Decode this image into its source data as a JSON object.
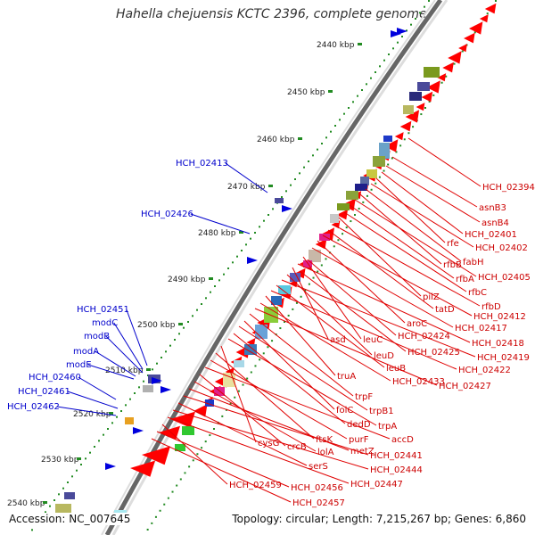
{
  "title": "Hahella chejuensis KCTC 2396, complete genome",
  "footer": {
    "accession": "Accession: NC_007645",
    "topology": "Topology: circular; Length: 7,215,267 bp; Genes: 6,860"
  },
  "ruler": [
    {
      "label": "2440 kbp"
    },
    {
      "label": "2450 kbp"
    },
    {
      "label": "2460 kbp"
    },
    {
      "label": "2470 kbp"
    },
    {
      "label": "2480 kbp"
    },
    {
      "label": "2490 kbp"
    },
    {
      "label": "2500 kbp"
    },
    {
      "label": "2510 kbp"
    },
    {
      "label": "2520 kbp"
    },
    {
      "label": "2530 kbp"
    },
    {
      "label": "2540 kbp"
    }
  ],
  "left_labels": [
    {
      "text": "HCH_02413"
    },
    {
      "text": "HCH_02426"
    },
    {
      "text": "HCH_02451"
    },
    {
      "text": "modC"
    },
    {
      "text": "modB"
    },
    {
      "text": "modA"
    },
    {
      "text": "modE"
    },
    {
      "text": "HCH_02460"
    },
    {
      "text": "HCH_02461"
    },
    {
      "text": "HCH_02462"
    }
  ],
  "right_labels": [
    {
      "text": "HCH_02394"
    },
    {
      "text": "asnB3"
    },
    {
      "text": "asnB4"
    },
    {
      "text": "HCH_02401"
    },
    {
      "text": "rfe"
    },
    {
      "text": "HCH_02402"
    },
    {
      "text": "fabH"
    },
    {
      "text": "rfbB"
    },
    {
      "text": "HCH_02405"
    },
    {
      "text": "rfbA"
    },
    {
      "text": "rfbC"
    },
    {
      "text": "pilZ"
    },
    {
      "text": "rfbD"
    },
    {
      "text": "tatD"
    },
    {
      "text": "HCH_02412"
    },
    {
      "text": "aroC"
    },
    {
      "text": "HCH_02417"
    },
    {
      "text": "asd"
    },
    {
      "text": "leuC"
    },
    {
      "text": "HCH_02424"
    },
    {
      "text": "HCH_02418"
    },
    {
      "text": "leuD"
    },
    {
      "text": "HCH_02425"
    },
    {
      "text": "HCH_02419"
    },
    {
      "text": "leuB"
    },
    {
      "text": "HCH_02422"
    },
    {
      "text": "truA"
    },
    {
      "text": "HCH_02433"
    },
    {
      "text": "HCH_02427"
    },
    {
      "text": "trpF"
    },
    {
      "text": "folC"
    },
    {
      "text": "trpB1"
    },
    {
      "text": "dedD"
    },
    {
      "text": "trpA"
    },
    {
      "text": "cysG"
    },
    {
      "text": "ftsK"
    },
    {
      "text": "purF"
    },
    {
      "text": "accD"
    },
    {
      "text": "crcB"
    },
    {
      "text": "lolA"
    },
    {
      "text": "metZ"
    },
    {
      "text": "HCH_02441"
    },
    {
      "text": "serS"
    },
    {
      "text": "HCH_02444"
    },
    {
      "text": "HCH_02447"
    },
    {
      "text": "HCH_02459"
    },
    {
      "text": "HCH_02456"
    },
    {
      "text": "HCH_02457"
    }
  ],
  "colors": {
    "label_left": "#0000cc",
    "label_right": "#cc0000",
    "leader_left": "#0000cc",
    "leader_right": "#e00000",
    "gene_cds": "#ff0000",
    "ruler_dots": "#228b22",
    "backbone_dark": "#666666",
    "backbone_light": "#dddddd"
  }
}
